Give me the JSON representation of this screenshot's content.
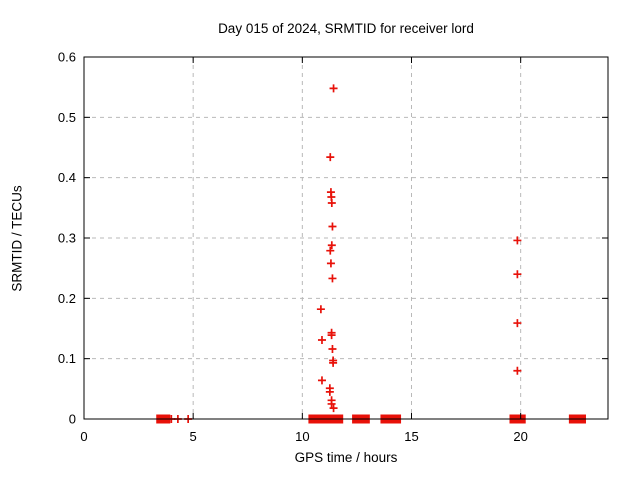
{
  "window": {
    "title": "Day 015 of 2024, SRMTID for receiver lord"
  },
  "chart_data": {
    "type": "scatter",
    "title": "Day 015 of 2024, SRMTID for receiver lord",
    "xlabel": "GPS time / hours",
    "ylabel": "SRMTID / TECUs",
    "xlim": [
      0,
      24
    ],
    "ylim": [
      0,
      0.6
    ],
    "xticks": [
      0,
      5,
      10,
      15,
      20
    ],
    "xtick_labels": [
      "0",
      "5",
      "10",
      "15",
      "20"
    ],
    "yticks": [
      0,
      0.1,
      0.2,
      0.3,
      0.4,
      0.5,
      0.6
    ],
    "ytick_labels": [
      "0",
      "0.1",
      "0.2",
      "0.3",
      "0.4",
      "0.5",
      "0.6"
    ],
    "grid": true,
    "legend_position": "none",
    "marker": "plus",
    "marker_color": "#e81109",
    "grid_color": "#b9b9b9",
    "frame_color": "#000000",
    "series": [
      {
        "name": "SRMTID",
        "points": [
          [
            11.43,
            0.548
          ],
          [
            11.28,
            0.434
          ],
          [
            11.31,
            0.376
          ],
          [
            11.33,
            0.368
          ],
          [
            11.35,
            0.358
          ],
          [
            11.38,
            0.319
          ],
          [
            11.35,
            0.288
          ],
          [
            11.28,
            0.279
          ],
          [
            11.31,
            0.258
          ],
          [
            11.38,
            0.233
          ],
          [
            10.85,
            0.182
          ],
          [
            11.34,
            0.143
          ],
          [
            11.34,
            0.139
          ],
          [
            10.9,
            0.131
          ],
          [
            11.38,
            0.116
          ],
          [
            11.41,
            0.097
          ],
          [
            11.41,
            0.093
          ],
          [
            10.9,
            0.064
          ],
          [
            11.26,
            0.051
          ],
          [
            11.26,
            0.045
          ],
          [
            11.34,
            0.031
          ],
          [
            11.34,
            0.025
          ],
          [
            11.43,
            0.018
          ],
          [
            19.85,
            0.296
          ],
          [
            19.85,
            0.24
          ],
          [
            19.85,
            0.159
          ],
          [
            19.85,
            0.08
          ]
        ]
      }
    ],
    "zero_line_points": [
      4.0,
      4.3,
      4.77
    ],
    "zero_line_segments": [
      [
        3.4,
        3.86
      ],
      [
        10.37,
        10.52
      ],
      [
        10.63,
        11.3
      ],
      [
        11.4,
        11.78
      ],
      [
        12.37,
        13.0
      ],
      [
        13.67,
        14.43
      ],
      [
        19.58,
        20.14
      ],
      [
        22.3,
        22.9
      ]
    ]
  }
}
